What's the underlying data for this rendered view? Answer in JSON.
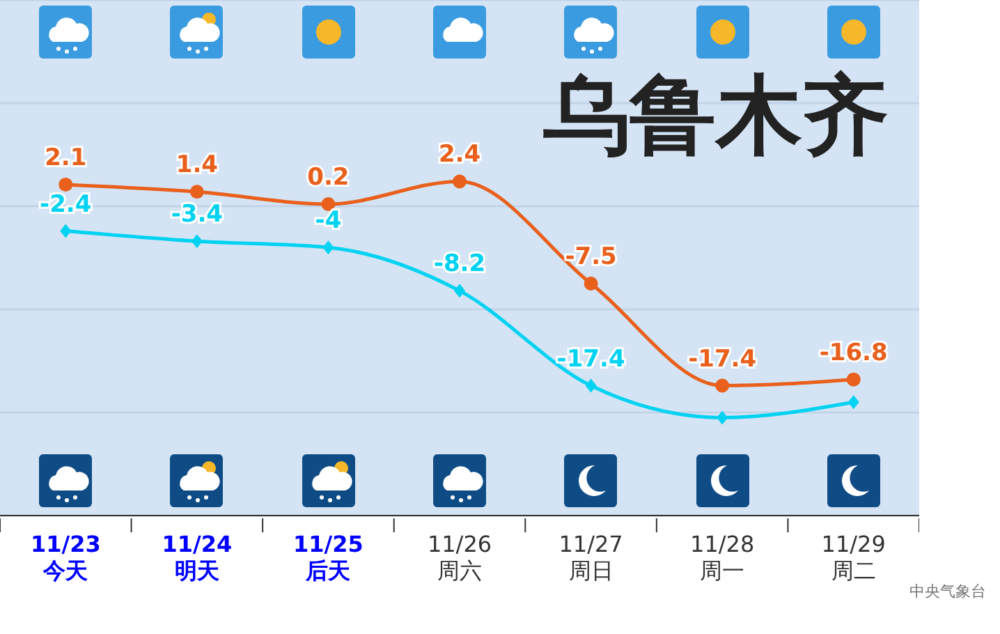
{
  "chart_data": {
    "type": "line",
    "title": "乌鲁木齐",
    "categories": [
      "11/23\n今天",
      "11/24\n明天",
      "11/25\n后天",
      "11/26\n周六",
      "11/27\n周日",
      "11/28\n周一",
      "11/29\n周二"
    ],
    "series": [
      {
        "color": "#e8601c",
        "marker": "circle",
        "values": [
          2.1,
          1.4,
          0.2,
          2.4,
          -7.5,
          -17.4,
          -16.8
        ],
        "value_labels": [
          "2.1",
          "1.4",
          "0.2",
          "2.4",
          "-7.5",
          "-17.4",
          "-16.8"
        ]
      },
      {
        "color": "#00d2f2",
        "marker": "diamond",
        "values": [
          -2.4,
          -3.4,
          -4,
          -8.2,
          -17.4,
          -20.5,
          -19
        ],
        "value_labels": [
          "-2.4",
          "-3.4",
          "-4",
          "-8.2",
          "-17.4",
          null,
          null
        ]
      }
    ],
    "ylim": [
      -30,
      20
    ],
    "tick_labels": "x",
    "grid": "y",
    "legend": false,
    "annotations": [
      "中央气象台"
    ]
  }
}
